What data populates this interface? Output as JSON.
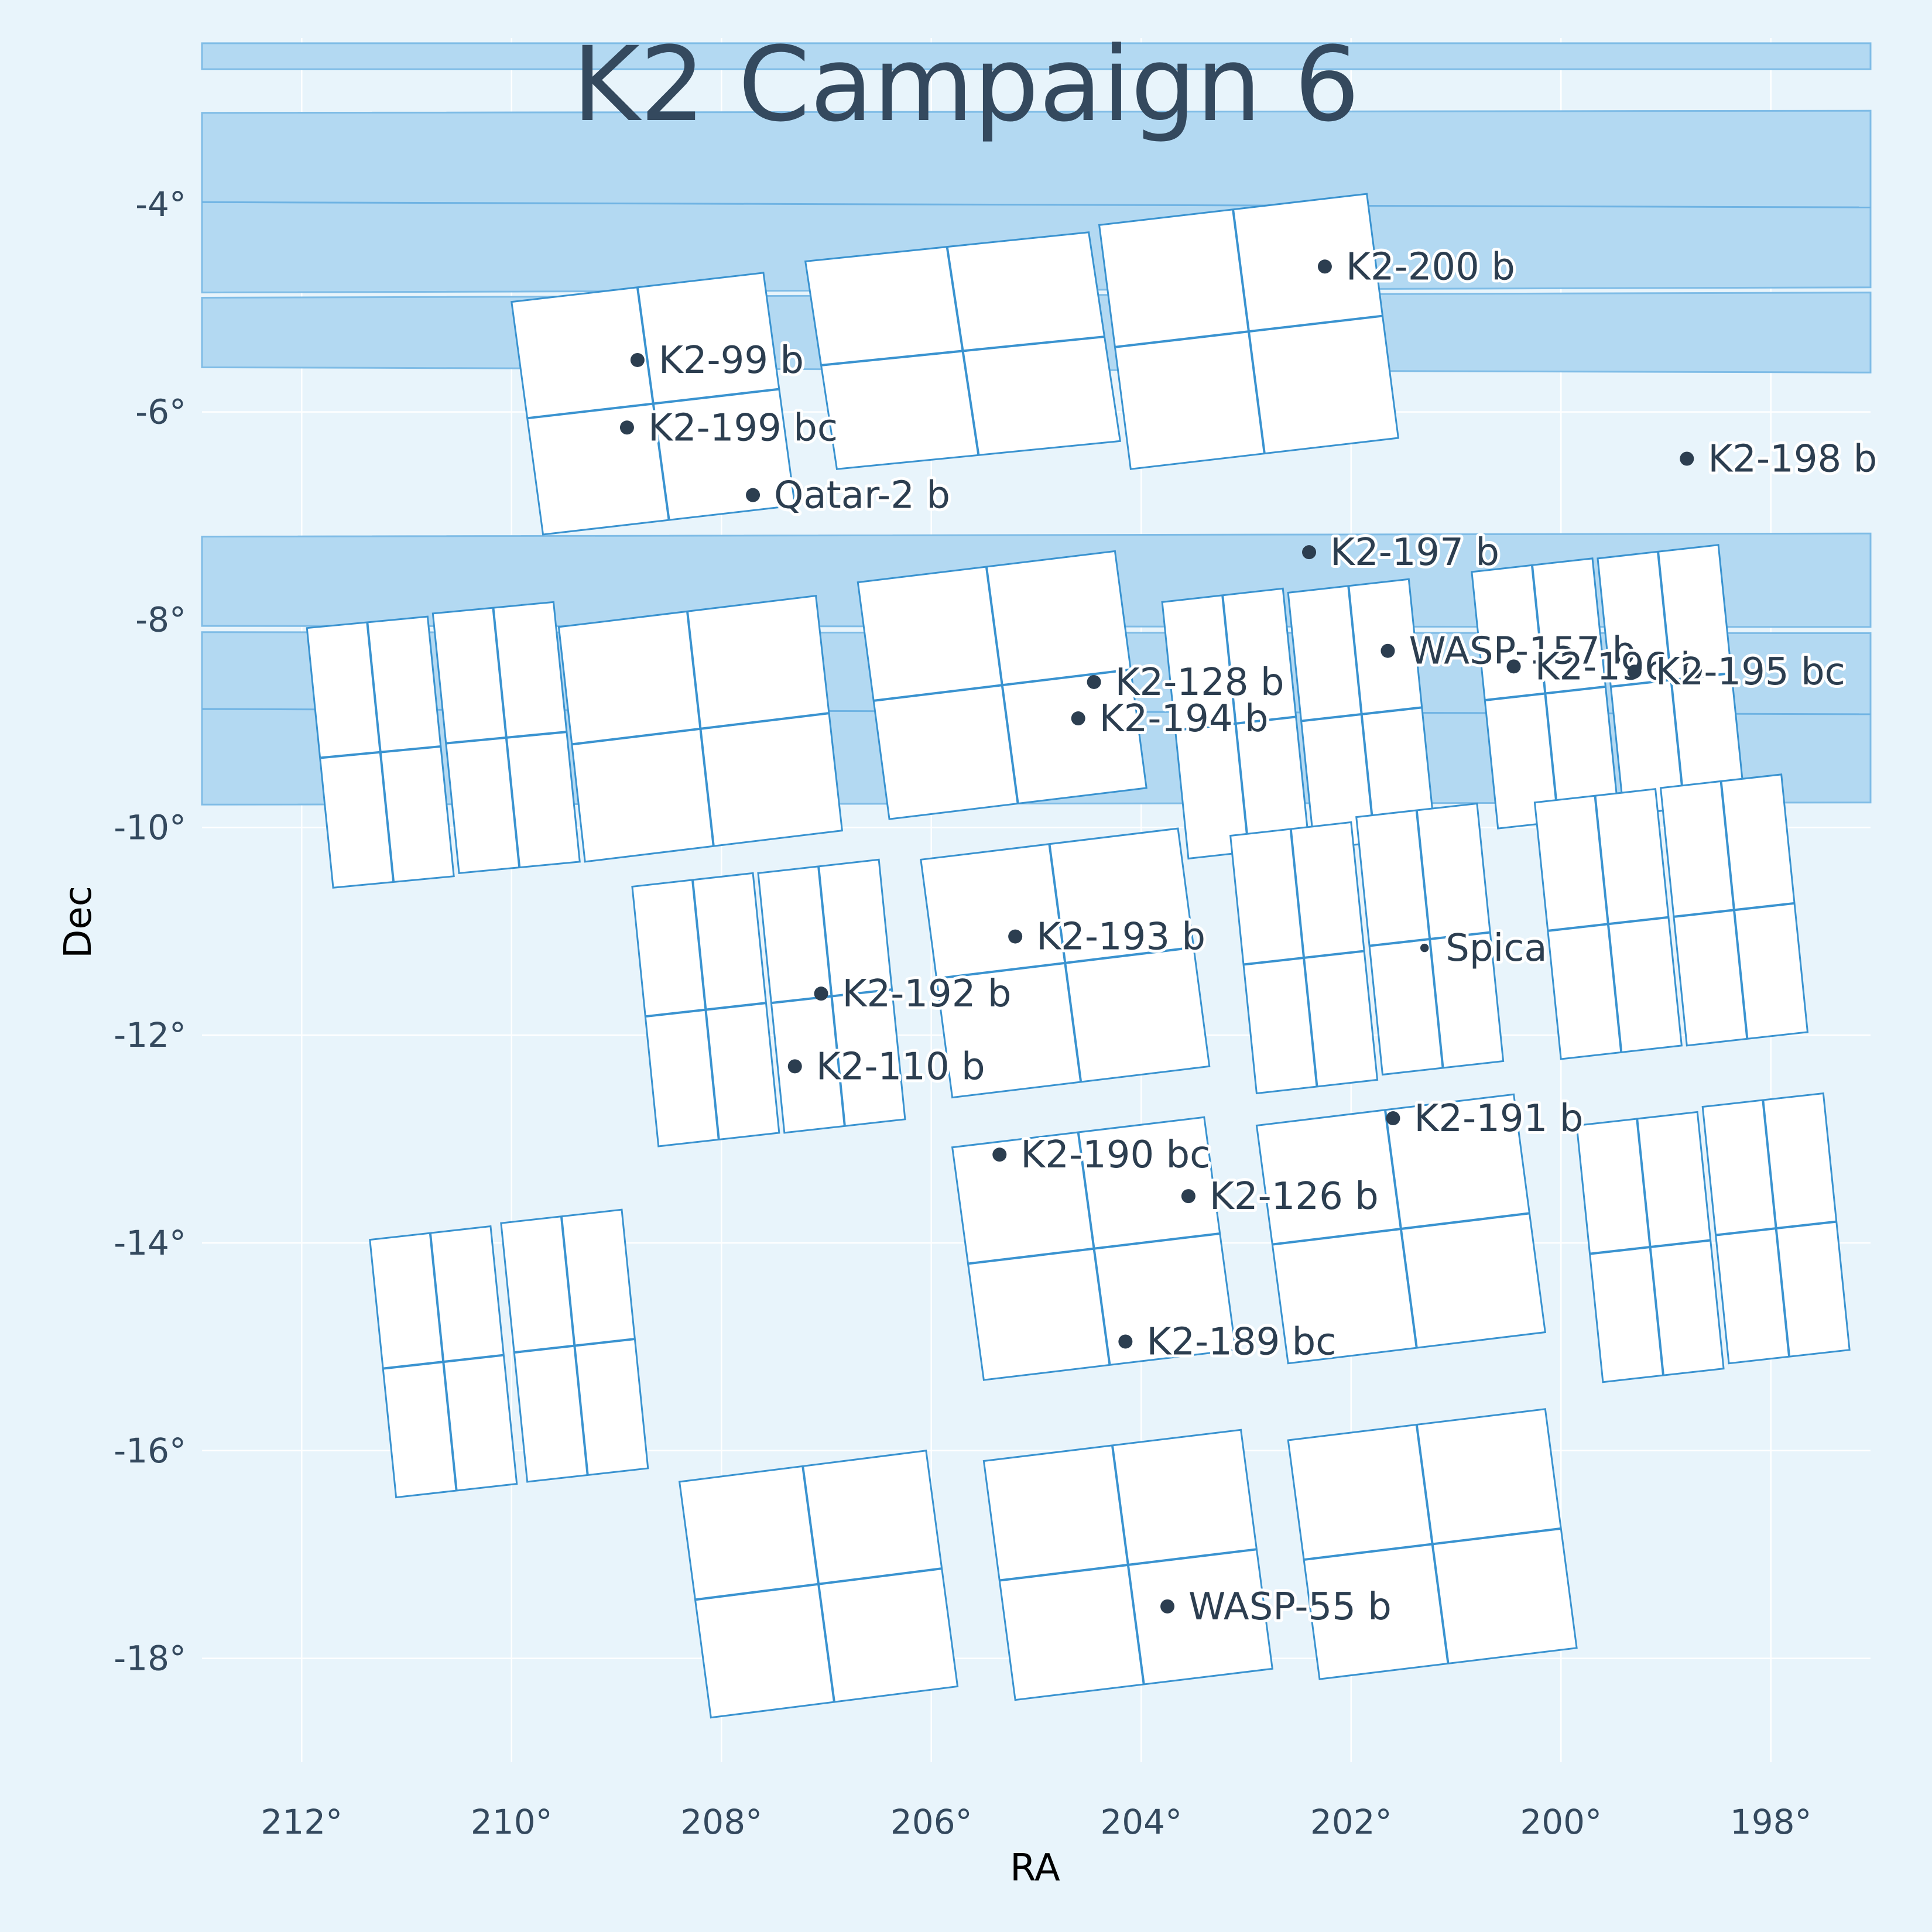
{
  "chart_data": {
    "type": "scatter",
    "title": "K2 Campaign 6",
    "xlabel": "RA",
    "ylabel": "Dec",
    "x_reversed": true,
    "xlim": [
      212.95,
      197.05
    ],
    "ylim": [
      -19.0,
      -2.4
    ],
    "grid": true,
    "x_ticks": [
      212,
      210,
      208,
      206,
      204,
      202,
      200,
      198
    ],
    "x_tick_labels": [
      "212°",
      "210°",
      "208°",
      "206°",
      "204°",
      "202°",
      "200°",
      "198°"
    ],
    "y_ticks": [
      -4,
      -6,
      -8,
      -10,
      -12,
      -14,
      -16,
      -18
    ],
    "y_tick_labels": [
      "-4°",
      "-6°",
      "-8°",
      "-10°",
      "-12°",
      "-14°",
      "-16°",
      "-18°"
    ],
    "bands": [
      {
        "ra_start": 212.95,
        "ra_end": 197.05,
        "dec_top_start": -2.45,
        "dec_top_end": -2.45,
        "dec_bottom_start": -2.7,
        "dec_bottom_end": -2.7
      },
      {
        "ra_start": 212.95,
        "ra_end": 197.05,
        "dec_top_start": -3.12,
        "dec_top_end": -3.1,
        "dec_bottom_start": -4.85,
        "dec_bottom_end": -4.8,
        "inner_line_start": -3.98,
        "inner_line_end": -4.03
      },
      {
        "ra_start": 212.95,
        "ra_end": 197.05,
        "dec_top_start": -4.9,
        "dec_top_end": -4.85,
        "dec_bottom_start": -5.57,
        "dec_bottom_end": -5.62
      },
      {
        "ra_start": 212.95,
        "ra_end": 197.05,
        "dec_top_start": -7.2,
        "dec_top_end": -7.17,
        "dec_bottom_start": -8.06,
        "dec_bottom_end": -8.07
      },
      {
        "ra_start": 212.95,
        "ra_end": 197.05,
        "dec_top_start": -8.12,
        "dec_top_end": -8.13,
        "dec_bottom_start": -9.78,
        "dec_bottom_end": -9.76,
        "inner_line_start": -8.86,
        "inner_line_end": -8.91
      }
    ],
    "modules": [
      {
        "corners": [
          [
            210.0,
            -4.94
          ],
          [
            207.6,
            -4.66
          ],
          [
            207.3,
            -6.9
          ],
          [
            209.7,
            -7.18
          ]
        ]
      },
      {
        "corners": [
          [
            207.2,
            -4.55
          ],
          [
            204.5,
            -4.27
          ],
          [
            204.2,
            -6.28
          ],
          [
            206.9,
            -6.55
          ]
        ]
      },
      {
        "corners": [
          [
            204.4,
            -4.2
          ],
          [
            201.85,
            -3.9
          ],
          [
            201.55,
            -6.25
          ],
          [
            204.1,
            -6.55
          ]
        ]
      },
      {
        "corners": [
          [
            211.95,
            -8.08
          ],
          [
            210.8,
            -7.97
          ],
          [
            210.55,
            -10.47
          ],
          [
            211.7,
            -10.58
          ]
        ]
      },
      {
        "corners": [
          [
            210.75,
            -7.94
          ],
          [
            209.6,
            -7.83
          ],
          [
            209.35,
            -10.33
          ],
          [
            210.5,
            -10.44
          ]
        ]
      },
      {
        "corners": [
          [
            209.55,
            -8.07
          ],
          [
            207.1,
            -7.77
          ],
          [
            206.85,
            -10.03
          ],
          [
            209.3,
            -10.33
          ]
        ]
      },
      {
        "corners": [
          [
            206.7,
            -7.64
          ],
          [
            204.25,
            -7.34
          ],
          [
            203.95,
            -9.62
          ],
          [
            206.4,
            -9.92
          ]
        ]
      },
      {
        "corners": [
          [
            203.8,
            -7.83
          ],
          [
            202.65,
            -7.7
          ],
          [
            202.4,
            -10.17
          ],
          [
            203.55,
            -10.3
          ]
        ]
      },
      {
        "corners": [
          [
            202.6,
            -7.74
          ],
          [
            201.45,
            -7.61
          ],
          [
            201.2,
            -10.08
          ],
          [
            202.35,
            -10.21
          ]
        ]
      },
      {
        "corners": [
          [
            200.85,
            -7.54
          ],
          [
            199.7,
            -7.41
          ],
          [
            199.45,
            -9.88
          ],
          [
            200.6,
            -10.01
          ]
        ]
      },
      {
        "corners": [
          [
            199.65,
            -7.41
          ],
          [
            198.5,
            -7.28
          ],
          [
            198.25,
            -9.75
          ],
          [
            199.4,
            -9.88
          ]
        ]
      },
      {
        "corners": [
          [
            208.85,
            -10.57
          ],
          [
            207.7,
            -10.44
          ],
          [
            207.45,
            -12.94
          ],
          [
            208.6,
            -13.07
          ]
        ]
      },
      {
        "corners": [
          [
            207.65,
            -10.44
          ],
          [
            206.5,
            -10.31
          ],
          [
            206.25,
            -12.81
          ],
          [
            207.4,
            -12.94
          ]
        ]
      },
      {
        "corners": [
          [
            206.1,
            -10.31
          ],
          [
            203.65,
            -10.01
          ],
          [
            203.35,
            -12.3
          ],
          [
            205.8,
            -12.6
          ]
        ]
      },
      {
        "corners": [
          [
            203.15,
            -10.08
          ],
          [
            202.0,
            -9.95
          ],
          [
            201.75,
            -12.43
          ],
          [
            202.9,
            -12.56
          ]
        ]
      },
      {
        "corners": [
          [
            201.95,
            -9.9
          ],
          [
            200.8,
            -9.77
          ],
          [
            200.55,
            -12.25
          ],
          [
            201.7,
            -12.38
          ]
        ]
      },
      {
        "corners": [
          [
            200.25,
            -9.76
          ],
          [
            199.1,
            -9.63
          ],
          [
            198.85,
            -12.1
          ],
          [
            200.0,
            -12.23
          ]
        ]
      },
      {
        "corners": [
          [
            199.05,
            -9.62
          ],
          [
            197.9,
            -9.49
          ],
          [
            197.65,
            -11.97
          ],
          [
            198.8,
            -12.1
          ]
        ]
      },
      {
        "corners": [
          [
            205.8,
            -13.08
          ],
          [
            203.4,
            -12.79
          ],
          [
            203.1,
            -15.03
          ],
          [
            205.5,
            -15.32
          ]
        ]
      },
      {
        "corners": [
          [
            202.9,
            -12.87
          ],
          [
            200.45,
            -12.57
          ],
          [
            200.15,
            -14.86
          ],
          [
            202.6,
            -15.16
          ]
        ]
      },
      {
        "corners": [
          [
            199.85,
            -12.87
          ],
          [
            198.7,
            -12.74
          ],
          [
            198.45,
            -15.21
          ],
          [
            199.6,
            -15.34
          ]
        ]
      },
      {
        "corners": [
          [
            198.65,
            -12.69
          ],
          [
            197.5,
            -12.56
          ],
          [
            197.25,
            -15.03
          ],
          [
            198.4,
            -15.16
          ]
        ]
      },
      {
        "corners": [
          [
            211.35,
            -13.97
          ],
          [
            210.2,
            -13.84
          ],
          [
            209.95,
            -16.32
          ],
          [
            211.1,
            -16.45
          ]
        ]
      },
      {
        "corners": [
          [
            210.1,
            -13.81
          ],
          [
            208.95,
            -13.68
          ],
          [
            208.7,
            -16.17
          ],
          [
            209.85,
            -16.3
          ]
        ]
      },
      {
        "corners": [
          [
            208.4,
            -16.3
          ],
          [
            206.05,
            -16.0
          ],
          [
            205.75,
            -18.27
          ],
          [
            208.1,
            -18.57
          ]
        ]
      },
      {
        "corners": [
          [
            205.5,
            -16.1
          ],
          [
            203.05,
            -15.8
          ],
          [
            202.75,
            -18.1
          ],
          [
            205.2,
            -18.4
          ]
        ]
      },
      {
        "corners": [
          [
            202.6,
            -15.9
          ],
          [
            200.15,
            -15.6
          ],
          [
            199.85,
            -17.9
          ],
          [
            202.3,
            -18.2
          ]
        ]
      }
    ],
    "points": [
      {
        "name": "K2-200 b",
        "ra": 202.25,
        "dec": -4.6,
        "size": 1
      },
      {
        "name": "K2-99 b",
        "ra": 208.8,
        "dec": -5.5,
        "size": 1
      },
      {
        "name": "K2-199 bc",
        "ra": 208.9,
        "dec": -6.15,
        "size": 1
      },
      {
        "name": "Qatar-2 b",
        "ra": 207.7,
        "dec": -6.8,
        "size": 1
      },
      {
        "name": "K2-198 b",
        "ra": 198.8,
        "dec": -6.45,
        "size": 1
      },
      {
        "name": "K2-197 b",
        "ra": 202.4,
        "dec": -7.35,
        "size": 1
      },
      {
        "name": "WASP-157 b",
        "ra": 201.65,
        "dec": -8.3,
        "size": 1
      },
      {
        "name": "K2-196 b",
        "ra": 200.45,
        "dec": -8.45,
        "size": 1
      },
      {
        "name": "K2-195 bc",
        "ra": 199.3,
        "dec": -8.5,
        "size": 1
      },
      {
        "name": "K2-128 b",
        "ra": 204.45,
        "dec": -8.6,
        "size": 1
      },
      {
        "name": "K2-194 b",
        "ra": 204.6,
        "dec": -8.95,
        "size": 1
      },
      {
        "name": "K2-193 b",
        "ra": 205.2,
        "dec": -11.05,
        "size": 1
      },
      {
        "name": "Spica",
        "ra": 201.3,
        "dec": -11.16,
        "size": 0.6
      },
      {
        "name": "K2-192 b",
        "ra": 207.05,
        "dec": -11.6,
        "size": 1
      },
      {
        "name": "K2-110 b",
        "ra": 207.3,
        "dec": -12.3,
        "size": 1
      },
      {
        "name": "K2-191 b",
        "ra": 201.6,
        "dec": -12.8,
        "size": 1
      },
      {
        "name": "K2-190 bc",
        "ra": 205.35,
        "dec": -13.15,
        "size": 1
      },
      {
        "name": "K2-126 b",
        "ra": 203.55,
        "dec": -13.55,
        "size": 1
      },
      {
        "name": "K2-189 bc",
        "ra": 204.15,
        "dec": -14.95,
        "size": 1
      },
      {
        "name": "WASP-55 b",
        "ra": 203.75,
        "dec": -17.5,
        "size": 1
      }
    ]
  }
}
